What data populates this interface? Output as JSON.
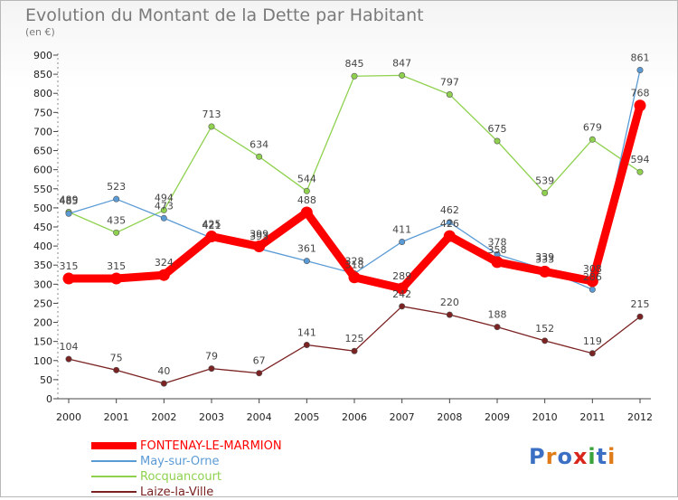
{
  "title": "Evolution du Montant de la Dette par Habitant",
  "subtitle": "(en €)",
  "logo": {
    "text": "Proxiti",
    "colors": [
      "#3a6fc4",
      "#e07b1a",
      "#3a6fc4",
      "#d9261c",
      "#3ba33b",
      "#3a6fc4",
      "#e07b1a"
    ]
  },
  "chart_data": {
    "type": "line",
    "title": "Evolution du Montant de la Dette par Habitant",
    "ylabel": "(en €)",
    "x": [
      "2000",
      "2001",
      "2002",
      "2003",
      "2004",
      "2005",
      "2006",
      "2007",
      "2008",
      "2009",
      "2010",
      "2011",
      "2012"
    ],
    "ylim": [
      0,
      900
    ],
    "yticks": [
      0,
      50,
      100,
      150,
      200,
      250,
      300,
      350,
      400,
      450,
      500,
      550,
      600,
      650,
      700,
      750,
      800,
      850,
      900
    ],
    "grid": false,
    "legend_position": "bottom-left",
    "series": [
      {
        "name": "FONTENAY-LE-MARMION",
        "color": "#ff0000",
        "values": [
          315,
          315,
          324,
          425,
          399,
          488,
          318,
          289,
          426,
          358,
          333,
          308,
          768
        ]
      },
      {
        "name": "May-sur-Orne",
        "color": "#5b9bd5",
        "values": [
          485,
          523,
          473,
          421,
          393,
          361,
          328,
          411,
          462,
          378,
          339,
          286,
          861
        ]
      },
      {
        "name": "Rocquancourt",
        "color": "#8fd14f",
        "values": [
          489,
          435,
          494,
          713,
          634,
          544,
          845,
          847,
          797,
          675,
          539,
          679,
          594
        ]
      },
      {
        "name": "Laize-la-Ville",
        "color": "#7b2222",
        "values": [
          104,
          75,
          40,
          79,
          67,
          141,
          125,
          242,
          220,
          188,
          152,
          119,
          215
        ]
      }
    ]
  }
}
